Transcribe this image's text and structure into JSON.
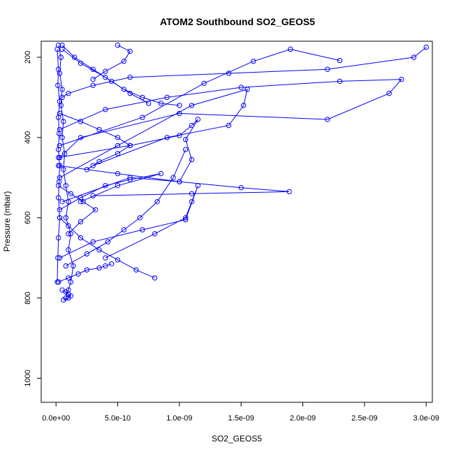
{
  "chart_data": {
    "type": "scatter",
    "title": "ATOM2 Southbound SO2_GEOS5",
    "xlabel": "SO2_GEOS5",
    "ylabel": "Pressure (mbar)",
    "xlim": [
      -1.2e-10,
      3.05e-09
    ],
    "ylim": [
      1060,
      160
    ],
    "y_reversed": true,
    "x_ticks": [
      0,
      5e-10,
      1e-09,
      1.5e-09,
      2e-09,
      2.5e-09,
      3e-09
    ],
    "x_tick_labels": [
      "0.0e+00",
      "5.0e-10",
      "1.0e-09",
      "1.5e-09",
      "2.0e-09",
      "2.5e-09",
      "3.0e-09"
    ],
    "y_ticks": [
      200,
      400,
      600,
      800,
      1000
    ],
    "y_tick_labels": [
      "200",
      "400",
      "600",
      "800",
      "1000"
    ],
    "grid": false,
    "style": {
      "color": "#0000ff",
      "marker": "open-circle",
      "connected": true
    },
    "series": [
      {
        "x": [
          2e-11,
          4e-11,
          3e-11,
          5e-11,
          4e-11,
          6e-11,
          5e-11,
          7e-11,
          6e-11,
          8e-11,
          1e-10,
          8e-11,
          1.2e-10,
          1e-10,
          1.4e-10,
          1.2e-10,
          1e-10,
          8e-11
        ],
        "y": [
          170,
          200,
          240,
          280,
          320,
          360,
          400,
          440,
          480,
          520,
          560,
          600,
          640,
          680,
          720,
          760,
          780,
          800
        ]
      },
      {
        "x": [
          1e-11,
          2e-11,
          1.5e-11,
          3e-11,
          2e-11,
          2.5e-11,
          2e-11,
          3e-11,
          2.5e-11,
          2e-11,
          3e-11,
          2e-11,
          1.5e-11,
          1e-11
        ],
        "y": [
          180,
          230,
          270,
          310,
          350,
          390,
          430,
          470,
          510,
          550,
          600,
          650,
          700,
          760
        ]
      },
      {
        "x": [
          5e-11,
          1e-10,
          3e-10,
          6e-10,
          1.4e-09,
          2.2e-09,
          2.9e-09,
          3e-09
        ],
        "y": [
          300,
          290,
          270,
          250,
          240,
          230,
          200,
          175
        ]
      },
      {
        "x": [
          3e-11,
          4e-10,
          9e-10,
          1.5e-09,
          2.3e-09,
          2.8e-09,
          2.7e-09,
          2.2e-09,
          1e-09,
          2e-10,
          3e-11
        ],
        "y": [
          380,
          330,
          300,
          275,
          260,
          255,
          290,
          355,
          340,
          400,
          450
        ]
      },
      {
        "x": [
          3e-11,
          7e-10,
          1.2e-09,
          1.6e-09,
          1.9e-09,
          2.3e-09
        ],
        "y": [
          420,
          350,
          265,
          210,
          180,
          208
        ]
      },
      {
        "x": [
          3e-11,
          5e-10,
          1.1e-09,
          1.55e-09,
          1.52e-09,
          1.4e-09,
          9e-10,
          3e-10
        ],
        "y": [
          500,
          420,
          320,
          280,
          320,
          370,
          400,
          470
        ]
      },
      {
        "x": [
          2e-11,
          6e-10,
          1e-09,
          1.1e-09,
          1.15e-09,
          1.05e-09,
          1.1e-09,
          1e-09,
          6e-10,
          5e-11
        ],
        "y": [
          450,
          420,
          395,
          370,
          355,
          405,
          455,
          510,
          500,
          560
        ]
      },
      {
        "x": [
          2e-11,
          5e-10,
          1e-09,
          1.5e-09,
          1.89e-09,
          1.1e-09,
          3e-10
        ],
        "y": [
          470,
          490,
          510,
          525,
          535,
          540,
          545
        ]
      },
      {
        "x": [
          3e-11,
          3e-10,
          7e-10,
          1.05e-09,
          1.15e-09,
          1.1e-09,
          1.05e-09,
          8e-10,
          4e-10
        ],
        "y": [
          700,
          660,
          630,
          605,
          520,
          560,
          600,
          640,
          700
        ]
      },
      {
        "x": [
          3e-11,
          2e-10,
          4e-10,
          6e-10,
          8.5e-10,
          5e-10,
          2e-10
        ],
        "y": [
          580,
          550,
          520,
          505,
          490,
          520,
          560
        ]
      },
      {
        "x": [
          5e-11,
          1.5e-10,
          3e-10,
          4.5e-10,
          6e-10,
          7.5e-10
        ],
        "y": [
          170,
          200,
          230,
          260,
          290,
          315
        ]
      },
      {
        "x": [
          5e-11,
          2e-10,
          4e-10,
          5.5e-10,
          7e-10,
          8.5e-10,
          1e-09
        ],
        "y": [
          180,
          215,
          250,
          280,
          300,
          315,
          320
        ]
      },
      {
        "x": [
          3e-11,
          1e-10,
          2e-10,
          3.5e-10,
          5e-10,
          6.5e-10,
          8e-10
        ],
        "y": [
          600,
          620,
          650,
          680,
          705,
          730,
          750
        ]
      },
      {
        "x": [
          2e-11,
          1e-10,
          1.8e-10,
          2.5e-10,
          3.5e-10,
          4e-10,
          4.5e-10
        ],
        "y": [
          760,
          750,
          740,
          730,
          725,
          720,
          715
        ]
      },
      {
        "x": [
          3e-11,
          2e-10,
          3.5e-10,
          5e-10,
          6e-10,
          5e-10,
          3.5e-10,
          2.5e-10
        ],
        "y": [
          340,
          360,
          380,
          400,
          420,
          440,
          460,
          480
        ]
      },
      {
        "x": [
          2e-11,
          1.2e-10,
          2.2e-10,
          3.2e-10,
          2e-10,
          1e-10
        ],
        "y": [
          520,
          540,
          560,
          580,
          610,
          640
        ]
      },
      {
        "x": [
          5e-11,
          1e-10,
          8e-11,
          1.2e-10,
          1e-10,
          6e-11
        ],
        "y": [
          780,
          790,
          785,
          795,
          800,
          805
        ]
      },
      {
        "x": [
          5e-10,
          6e-10,
          5.5e-10,
          4e-10,
          3e-10
        ],
        "y": [
          170,
          185,
          210,
          235,
          255
        ]
      },
      {
        "x": [
          8e-11,
          2.5e-10,
          4.2e-10,
          5.5e-10,
          6.8e-10,
          8.2e-10,
          9.5e-10,
          1.05e-09
        ],
        "y": [
          720,
          690,
          660,
          630,
          600,
          560,
          500,
          430
        ]
      }
    ]
  }
}
